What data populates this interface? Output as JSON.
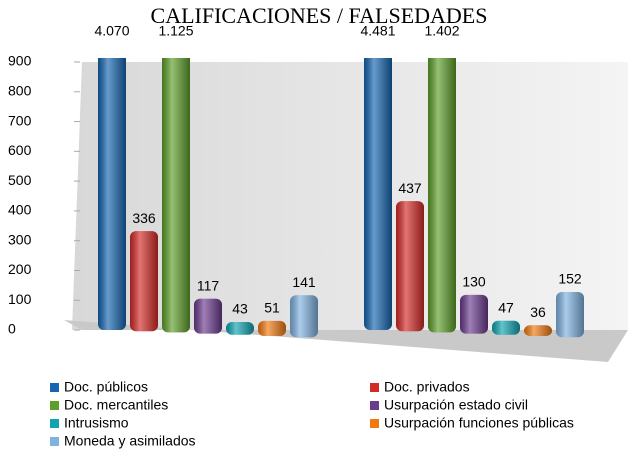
{
  "chart_data": {
    "type": "bar3d",
    "title": "CALIFICACIONES / FALSEDADES",
    "categories": [
      null,
      null
    ],
    "ylim": [
      0,
      900
    ],
    "yticks": [
      0,
      100,
      200,
      300,
      400,
      500,
      600,
      700,
      800,
      900
    ],
    "legend": "bottom",
    "series": [
      {
        "name": "Doc. públicos",
        "color": "#1565b0",
        "values": [
          4070,
          4481
        ],
        "value_labels": [
          "4.070",
          "4.481"
        ]
      },
      {
        "name": "Doc. privados",
        "color": "#d42a26",
        "values": [
          336,
          437
        ]
      },
      {
        "name": "Doc. mercantiles",
        "color": "#5e9e2a",
        "values": [
          1125,
          1402
        ],
        "value_labels": [
          "1.125",
          "1.402"
        ]
      },
      {
        "name": "Usurpación estado civil",
        "color": "#6b3b8e",
        "values": [
          117,
          130
        ]
      },
      {
        "name": "Intrusismo",
        "color": "#10a3b0",
        "values": [
          43,
          47
        ]
      },
      {
        "name": "Usurpación funciones públicas",
        "color": "#f07a10",
        "values": [
          51,
          36
        ]
      },
      {
        "name": "Moneda y asimilados",
        "color": "#7fb2e0",
        "values": [
          141,
          152
        ]
      }
    ]
  }
}
